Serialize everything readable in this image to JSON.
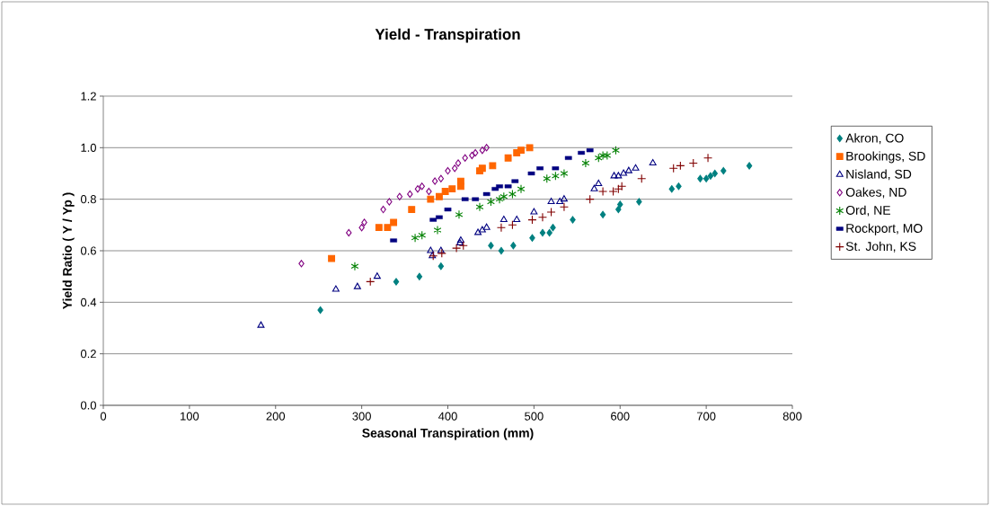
{
  "chart_data": {
    "type": "scatter",
    "title": "Yield - Transpiration",
    "xlabel": "Seasonal Transpiration (mm)",
    "ylabel": "Yield Ratio ( Y / Yp )",
    "xlim": [
      0,
      800
    ],
    "ylim": [
      0,
      1.2
    ],
    "xticks": [
      0,
      100,
      200,
      300,
      400,
      500,
      600,
      700,
      800
    ],
    "yticks": [
      {
        "value": 0,
        "label": "0.0"
      },
      {
        "value": 0.2,
        "label": "0.2"
      },
      {
        "value": 0.4,
        "label": "0.4"
      },
      {
        "value": 0.6,
        "label": "0.6"
      },
      {
        "value": 0.8,
        "label": "0.8"
      },
      {
        "value": 1.0,
        "label": "1.0"
      },
      {
        "value": 1.2,
        "label": "1.2"
      }
    ],
    "grid": "y",
    "legend": "right",
    "series": [
      {
        "name": "Akron, CO",
        "color": "#008080",
        "marker": "diamond",
        "x": [
          252,
          340,
          367,
          392,
          450,
          462,
          476,
          498,
          510,
          518,
          522,
          545,
          580,
          598,
          600,
          622,
          660,
          668,
          693,
          700,
          705,
          710,
          720,
          750
        ],
        "values": [
          0.37,
          0.48,
          0.5,
          0.54,
          0.62,
          0.6,
          0.62,
          0.65,
          0.67,
          0.67,
          0.69,
          0.72,
          0.74,
          0.76,
          0.78,
          0.79,
          0.84,
          0.85,
          0.88,
          0.88,
          0.89,
          0.9,
          0.91,
          0.93
        ]
      },
      {
        "name": "Brookings, SD",
        "color": "#ff6600",
        "marker": "square",
        "x": [
          265,
          320,
          330,
          337,
          358,
          380,
          390,
          397,
          405,
          415,
          415,
          437,
          440,
          452,
          470,
          480,
          485,
          495
        ],
        "values": [
          0.57,
          0.69,
          0.69,
          0.71,
          0.76,
          0.8,
          0.81,
          0.83,
          0.84,
          0.85,
          0.87,
          0.91,
          0.92,
          0.93,
          0.96,
          0.98,
          0.99,
          1.0
        ]
      },
      {
        "name": "Nisland, SD",
        "color": "#000080",
        "marker": "triangle",
        "x": [
          183,
          270,
          295,
          318,
          380,
          382,
          392,
          414,
          415,
          435,
          440,
          445,
          465,
          480,
          500,
          520,
          530,
          535,
          570,
          575,
          593,
          598,
          604,
          610,
          618,
          638
        ],
        "values": [
          0.31,
          0.45,
          0.46,
          0.5,
          0.6,
          0.58,
          0.6,
          0.63,
          0.64,
          0.67,
          0.68,
          0.69,
          0.72,
          0.72,
          0.75,
          0.79,
          0.79,
          0.8,
          0.84,
          0.86,
          0.89,
          0.89,
          0.9,
          0.91,
          0.92,
          0.94
        ]
      },
      {
        "name": "Oakes, ND",
        "color": "#800080",
        "marker": "diamond",
        "x": [
          230,
          285,
          300,
          303,
          325,
          332,
          344,
          356,
          365,
          370,
          378,
          385,
          392,
          400,
          408,
          412,
          420,
          428,
          432,
          440,
          445
        ],
        "values": [
          0.55,
          0.67,
          0.69,
          0.71,
          0.76,
          0.79,
          0.81,
          0.82,
          0.84,
          0.85,
          0.83,
          0.87,
          0.88,
          0.91,
          0.92,
          0.94,
          0.96,
          0.97,
          0.98,
          0.99,
          1.0
        ]
      },
      {
        "name": "Ord, NE",
        "color": "#008000",
        "marker": "cross",
        "x": [
          292,
          362,
          370,
          388,
          413,
          437,
          450,
          460,
          465,
          475,
          485,
          515,
          525,
          535,
          560,
          575,
          580,
          585,
          595
        ],
        "values": [
          0.54,
          0.65,
          0.66,
          0.68,
          0.74,
          0.77,
          0.79,
          0.8,
          0.81,
          0.82,
          0.84,
          0.88,
          0.89,
          0.9,
          0.94,
          0.96,
          0.97,
          0.97,
          0.99
        ]
      },
      {
        "name": "Rockport, MO",
        "color": "#000080",
        "marker": "square",
        "x": [
          337,
          383,
          390,
          400,
          420,
          432,
          445,
          455,
          460,
          470,
          478,
          497,
          507,
          525,
          540,
          555,
          565
        ],
        "values": [
          0.64,
          0.72,
          0.73,
          0.76,
          0.8,
          0.8,
          0.82,
          0.84,
          0.85,
          0.85,
          0.87,
          0.9,
          0.92,
          0.92,
          0.96,
          0.98,
          0.99
        ]
      },
      {
        "name": "St. John, KS",
        "color": "#800000",
        "marker": "cross",
        "x": [
          310,
          383,
          393,
          410,
          418,
          462,
          475,
          498,
          510,
          520,
          535,
          565,
          580,
          592,
          598,
          602,
          625,
          662,
          670,
          685,
          702
        ],
        "values": [
          0.48,
          0.58,
          0.59,
          0.61,
          0.62,
          0.69,
          0.7,
          0.72,
          0.73,
          0.75,
          0.77,
          0.8,
          0.83,
          0.83,
          0.84,
          0.85,
          0.88,
          0.92,
          0.93,
          0.94,
          0.96
        ]
      }
    ]
  }
}
